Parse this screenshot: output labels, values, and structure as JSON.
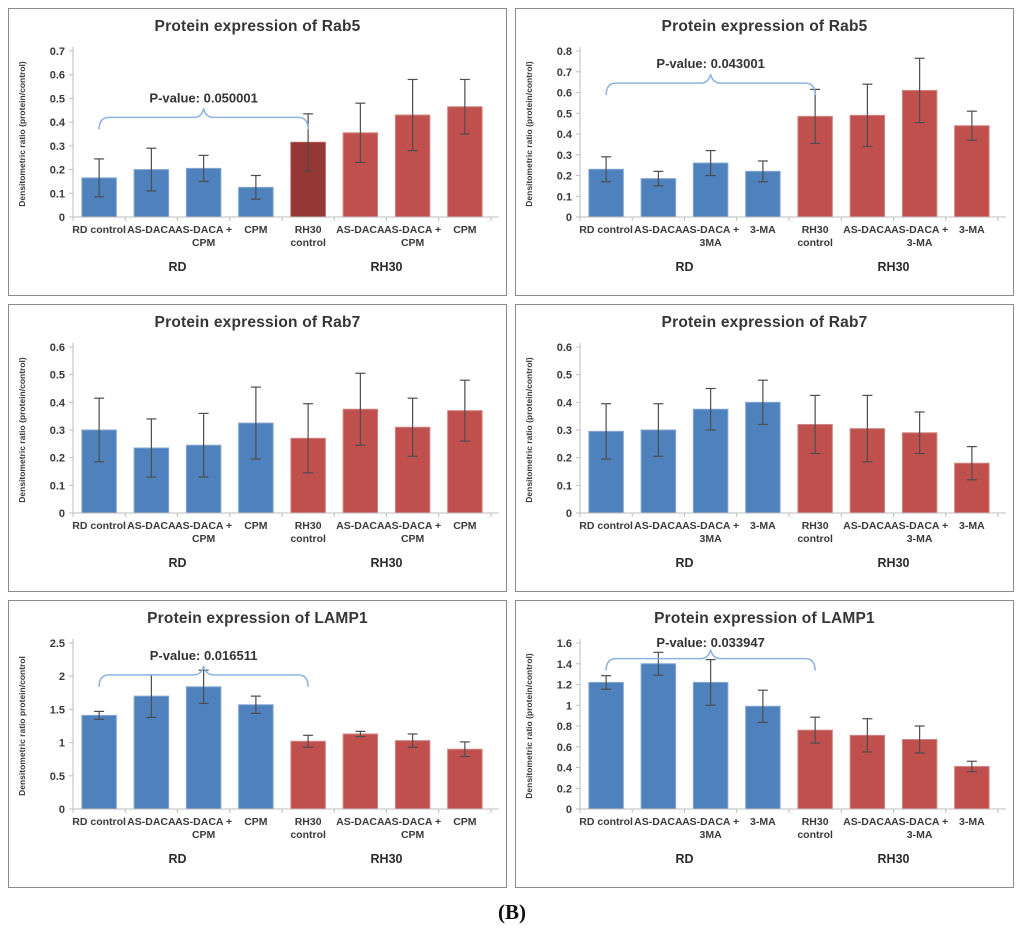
{
  "figure": {
    "caption": "(B)"
  },
  "colors": {
    "blue": "#4F81BD",
    "blue_border": "#84A7D1",
    "red": "#C0504D",
    "red_border": "#D08885",
    "dark_red": "#943634",
    "dark_red_border": "#B45955",
    "error_bar": "#4d4d4d",
    "axis": "#bdbdbd",
    "bracket": "#8DB4E2"
  },
  "chart_data": [
    {
      "type": "bar",
      "title": "Protein expression of Rab5",
      "ylabel": "Densitometric ratio (protein/control)",
      "ylim": [
        0,
        0.7
      ],
      "ytick_step": 0.1,
      "pvalue": {
        "label": "P-value: 0.050001",
        "from": 0,
        "to": 4,
        "y": 0.42
      },
      "categories": [
        [
          "RD control"
        ],
        [
          "AS-DACA"
        ],
        [
          "AS-DACA +",
          "CPM"
        ],
        [
          "CPM"
        ],
        [
          "RH30",
          "control"
        ],
        [
          "AS-DACA"
        ],
        [
          "AS-DACA +",
          "CPM"
        ],
        [
          "CPM"
        ]
      ],
      "values": [
        0.165,
        0.2,
        0.205,
        0.125,
        0.315,
        0.355,
        0.43,
        0.465
      ],
      "errors": [
        0.08,
        0.09,
        0.055,
        0.05,
        0.12,
        0.125,
        0.15,
        0.115
      ],
      "bar_colors": [
        "blue",
        "blue",
        "blue",
        "blue",
        "dark_red",
        "red",
        "red",
        "red"
      ],
      "groups": [
        {
          "label": "RD",
          "from": 0,
          "to": 3
        },
        {
          "label": "RH30",
          "from": 4,
          "to": 7
        }
      ]
    },
    {
      "type": "bar",
      "title": "Protein expression of Rab5",
      "ylabel": "Densitometric ratio (protein/control)",
      "ylim": [
        0,
        0.8
      ],
      "ytick_step": 0.1,
      "pvalue": {
        "label": "P-value: 0.043001",
        "from": 0,
        "to": 4,
        "y": 0.645
      },
      "categories": [
        [
          "RD control"
        ],
        [
          "AS-DACA"
        ],
        [
          "AS-DACA +",
          "3MA"
        ],
        [
          "3-MA"
        ],
        [
          "RH30",
          "control"
        ],
        [
          "AS-DACA"
        ],
        [
          "AS-DACA +",
          "3-MA"
        ],
        [
          "3-MA"
        ]
      ],
      "values": [
        0.23,
        0.185,
        0.26,
        0.22,
        0.485,
        0.49,
        0.61,
        0.44
      ],
      "errors": [
        0.06,
        0.035,
        0.06,
        0.05,
        0.13,
        0.15,
        0.155,
        0.07
      ],
      "bar_colors": [
        "blue",
        "blue",
        "blue",
        "blue",
        "red",
        "red",
        "red",
        "red"
      ],
      "groups": [
        {
          "label": "RD",
          "from": 0,
          "to": 3
        },
        {
          "label": "RH30",
          "from": 4,
          "to": 7
        }
      ]
    },
    {
      "type": "bar",
      "title": "Protein expression of Rab7",
      "ylabel": "Densitometric ratio (protein/control)",
      "ylim": [
        0,
        0.6
      ],
      "ytick_step": 0.1,
      "pvalue": null,
      "categories": [
        [
          "RD control"
        ],
        [
          "AS-DACA"
        ],
        [
          "AS-DACA +",
          "CPM"
        ],
        [
          "CPM"
        ],
        [
          "RH30",
          "control"
        ],
        [
          "AS-DACA"
        ],
        [
          "AS-DACA +",
          "CPM"
        ],
        [
          "CPM"
        ]
      ],
      "values": [
        0.3,
        0.235,
        0.245,
        0.325,
        0.27,
        0.375,
        0.31,
        0.37
      ],
      "errors": [
        0.115,
        0.105,
        0.115,
        0.13,
        0.125,
        0.13,
        0.105,
        0.11
      ],
      "bar_colors": [
        "blue",
        "blue",
        "blue",
        "blue",
        "red",
        "red",
        "red",
        "red"
      ],
      "groups": [
        {
          "label": "RD",
          "from": 0,
          "to": 3
        },
        {
          "label": "RH30",
          "from": 4,
          "to": 7
        }
      ]
    },
    {
      "type": "bar",
      "title": "Protein expression of Rab7",
      "ylabel": "Densitometric ratio (protein/control)",
      "ylim": [
        0,
        0.6
      ],
      "ytick_step": 0.1,
      "pvalue": null,
      "categories": [
        [
          "RD control"
        ],
        [
          "AS-DACA"
        ],
        [
          "AS-DACA +",
          "3MA"
        ],
        [
          "3-MA"
        ],
        [
          "RH30",
          "control"
        ],
        [
          "AS-DACA"
        ],
        [
          "AS-DACA +",
          "3-MA"
        ],
        [
          "3-MA"
        ]
      ],
      "values": [
        0.295,
        0.3,
        0.375,
        0.4,
        0.32,
        0.305,
        0.29,
        0.18
      ],
      "errors": [
        0.1,
        0.095,
        0.075,
        0.08,
        0.105,
        0.12,
        0.075,
        0.06
      ],
      "bar_colors": [
        "blue",
        "blue",
        "blue",
        "blue",
        "red",
        "red",
        "red",
        "red"
      ],
      "groups": [
        {
          "label": "RD",
          "from": 0,
          "to": 3
        },
        {
          "label": "RH30",
          "from": 4,
          "to": 7
        }
      ]
    },
    {
      "type": "bar",
      "title": "Protein expression of LAMP1",
      "ylabel": "Densitometric ratio protein/control",
      "ylim": [
        0,
        2.5
      ],
      "ytick_step": 0.5,
      "pvalue": {
        "label": "P-value: 0.016511",
        "from": 0,
        "to": 4,
        "y": 2.02
      },
      "categories": [
        [
          "RD control"
        ],
        [
          "AS-DACA"
        ],
        [
          "AS-DACA +",
          "CPM"
        ],
        [
          "CPM"
        ],
        [
          "RH30",
          "control"
        ],
        [
          "AS-DACA"
        ],
        [
          "AS-DACA +",
          "CPM"
        ],
        [
          "CPM"
        ]
      ],
      "values": [
        1.41,
        1.7,
        1.84,
        1.57,
        1.02,
        1.13,
        1.03,
        0.9
      ],
      "errors": [
        0.06,
        0.32,
        0.25,
        0.13,
        0.09,
        0.04,
        0.1,
        0.11
      ],
      "bar_colors": [
        "blue",
        "blue",
        "blue",
        "blue",
        "red",
        "red",
        "red",
        "red"
      ],
      "groups": [
        {
          "label": "RD",
          "from": 0,
          "to": 3
        },
        {
          "label": "RH30",
          "from": 4,
          "to": 7
        }
      ]
    },
    {
      "type": "bar",
      "title": "Protein expression of LAMP1",
      "ylabel": "Densitometric ratio (protein/control)",
      "ylim": [
        0,
        1.6
      ],
      "ytick_step": 0.2,
      "pvalue": {
        "label": "P-value: 0.033947",
        "from": 0,
        "to": 4,
        "y": 1.45
      },
      "categories": [
        [
          "RD control"
        ],
        [
          "AS-DACA"
        ],
        [
          "AS-DACA +",
          "3MA"
        ],
        [
          "3-MA"
        ],
        [
          "RH30",
          "control"
        ],
        [
          "AS-DACA"
        ],
        [
          "AS-DACA +",
          "3-MA"
        ],
        [
          "3-MA"
        ]
      ],
      "values": [
        1.22,
        1.4,
        1.22,
        0.99,
        0.76,
        0.71,
        0.67,
        0.41
      ],
      "errors": [
        0.065,
        0.11,
        0.22,
        0.155,
        0.125,
        0.16,
        0.13,
        0.05
      ],
      "bar_colors": [
        "blue",
        "blue",
        "blue",
        "blue",
        "red",
        "red",
        "red",
        "red"
      ],
      "groups": [
        {
          "label": "RD",
          "from": 0,
          "to": 3
        },
        {
          "label": "RH30",
          "from": 4,
          "to": 7
        }
      ]
    }
  ]
}
